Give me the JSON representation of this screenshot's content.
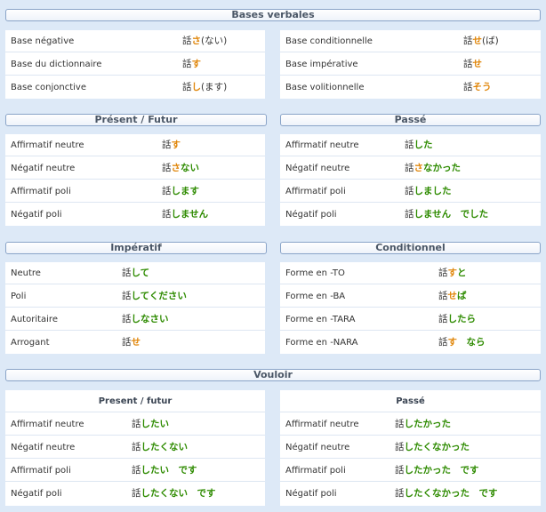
{
  "colors": {
    "background": "#dde9f7",
    "ending_green": "#2e8b00",
    "ending_orange": "#e0860a"
  },
  "bases": {
    "title": "Bases verbales",
    "left": [
      {
        "label": "Base négative",
        "stem": "話",
        "end": "さ",
        "rest": "(ない)"
      },
      {
        "label": "Base du dictionnaire",
        "stem": "話",
        "end": "す",
        "rest": ""
      },
      {
        "label": "Base conjonctive",
        "stem": "話",
        "end": "し",
        "rest": "(ます)"
      }
    ],
    "right": [
      {
        "label": "Base conditionnelle",
        "stem": "話",
        "end": "せ",
        "rest": "(ば)"
      },
      {
        "label": "Base impérative",
        "stem": "話",
        "end": "せ",
        "rest": ""
      },
      {
        "label": "Base volitionnelle",
        "stem": "話",
        "end": "そう",
        "rest": ""
      }
    ]
  },
  "present": {
    "title": "Présent / Futur",
    "rows": [
      {
        "label": "Affirmatif neutre",
        "stem": "話",
        "end": "す"
      },
      {
        "label": "Négatif neutre",
        "stem": "話",
        "end": "さ",
        "end2": "ない"
      },
      {
        "label": "Affirmatif poli",
        "stem": "話",
        "end": "します"
      },
      {
        "label": "Négatif poli",
        "stem": "話",
        "end": "しません"
      }
    ]
  },
  "passe": {
    "title": "Passé",
    "rows": [
      {
        "label": "Affirmatif neutre",
        "stem": "話",
        "end": "した"
      },
      {
        "label": "Négatif neutre",
        "stem": "話",
        "end": "さ",
        "end2": "なかった"
      },
      {
        "label": "Affirmatif poli",
        "stem": "話",
        "end": "しました"
      },
      {
        "label": "Négatif poli",
        "stem": "話",
        "end": "しません　でした"
      }
    ]
  },
  "imperatif": {
    "title": "Impératif",
    "rows": [
      {
        "label": "Neutre",
        "stem": "話",
        "end": "して"
      },
      {
        "label": "Poli",
        "stem": "話",
        "end": "してください"
      },
      {
        "label": "Autoritaire",
        "stem": "話",
        "end": "しなさい"
      },
      {
        "label": "Arrogant",
        "stem": "話",
        "end": "せ"
      }
    ]
  },
  "conditionnel": {
    "title": "Conditionnel",
    "rows": [
      {
        "label": "Forme en -TO",
        "stem": "話",
        "end": "す",
        "end2": "と"
      },
      {
        "label": "Forme en -BA",
        "stem": "話",
        "end": "せ",
        "end2": "ば"
      },
      {
        "label": "Forme en -TARA",
        "stem": "話",
        "end": "したら"
      },
      {
        "label": "Forme en -NARA",
        "stem": "話",
        "end": "す",
        "end2": "　なら"
      }
    ]
  },
  "vouloir": {
    "title": "Vouloir",
    "present": {
      "subtitle": "Present / futur",
      "rows": [
        {
          "label": "Affirmatif neutre",
          "stem": "話",
          "end": "したい"
        },
        {
          "label": "Négatif neutre",
          "stem": "話",
          "end": "したくない"
        },
        {
          "label": "Affirmatif poli",
          "stem": "話",
          "end": "したい　です"
        },
        {
          "label": "Négatif poli",
          "stem": "話",
          "end": "したくない　です"
        }
      ]
    },
    "passe": {
      "subtitle": "Passé",
      "rows": [
        {
          "label": "Affirmatif neutre",
          "stem": "話",
          "end": "したかった"
        },
        {
          "label": "Négatif neutre",
          "stem": "話",
          "end": "したくなかった"
        },
        {
          "label": "Affirmatif poli",
          "stem": "話",
          "end": "したかった　です"
        },
        {
          "label": "Négatif poli",
          "stem": "話",
          "end": "したくなかった　です"
        }
      ]
    }
  }
}
